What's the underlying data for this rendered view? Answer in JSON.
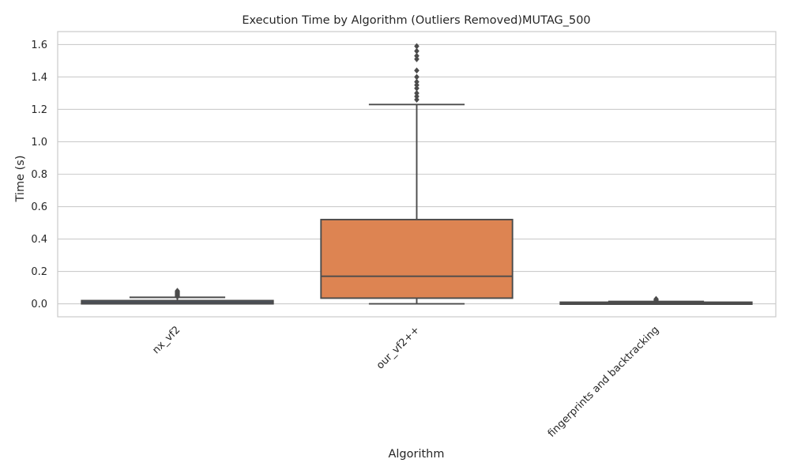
{
  "chart_data": {
    "type": "box",
    "title": "Execution Time by Algorithm (Outliers Removed)MUTAG_500",
    "xlabel": "Algorithm",
    "ylabel": "Time (s)",
    "ylim": [
      -0.08,
      1.68
    ],
    "yticks": [
      0.0,
      0.2,
      0.4,
      0.6,
      0.8,
      1.0,
      1.2,
      1.4,
      1.6
    ],
    "ytick_labels": [
      "0.0",
      "0.2",
      "0.4",
      "0.6",
      "0.8",
      "1.0",
      "1.2",
      "1.4",
      "1.6"
    ],
    "grid": true,
    "categories": [
      "nx_vf2",
      "our_vf2++",
      "fingerprints and backtracking"
    ],
    "boxes": [
      {
        "category": "nx_vf2",
        "color": "#4c72b0",
        "whisker_low": 0.0,
        "q1": 0.0,
        "median": 0.01,
        "q3": 0.02,
        "whisker_high": 0.04,
        "fliers": [
          0.045,
          0.05,
          0.055,
          0.06,
          0.065,
          0.07,
          0.075,
          0.08
        ]
      },
      {
        "category": "our_vf2++",
        "color": "#dd8452",
        "whisker_low": 0.0,
        "q1": 0.035,
        "median": 0.17,
        "q3": 0.52,
        "whisker_high": 1.23,
        "fliers": [
          1.26,
          1.28,
          1.3,
          1.33,
          1.35,
          1.37,
          1.4,
          1.44,
          1.51,
          1.53,
          1.56,
          1.59
        ]
      },
      {
        "category": "fingerprints and backtracking",
        "color": "#55a868",
        "whisker_low": 0.0,
        "q1": 0.0,
        "median": 0.005,
        "q3": 0.01,
        "whisker_high": 0.015,
        "fliers": [
          0.02,
          0.025,
          0.03
        ]
      }
    ]
  }
}
